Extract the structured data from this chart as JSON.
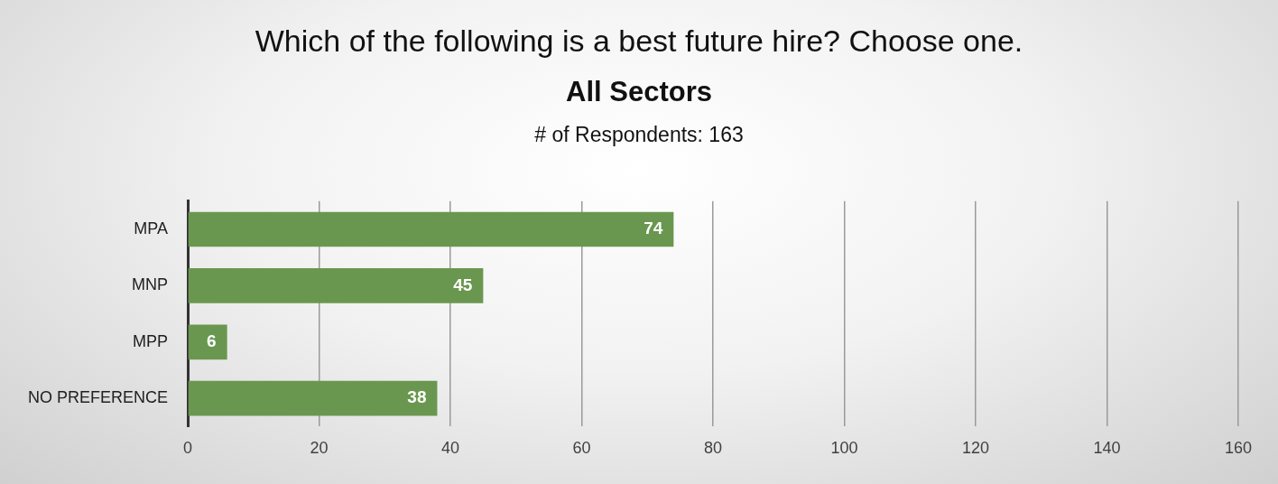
{
  "chart_data": {
    "type": "bar",
    "orientation": "horizontal",
    "title": "Which of the following is a best future hire? Choose one.",
    "subtitle": "All Sectors",
    "annotations": [
      "# of Respondents: 163"
    ],
    "categories": [
      "MPA",
      "MNP",
      "MPP",
      "NO PREFERENCE"
    ],
    "values": [
      74,
      45,
      6,
      38
    ],
    "color": "#6a974f",
    "xlim": [
      0,
      160
    ],
    "xticks": [
      0,
      20,
      40,
      60,
      80,
      100,
      120,
      140,
      160
    ],
    "grid": "x",
    "data_labels": true
  }
}
